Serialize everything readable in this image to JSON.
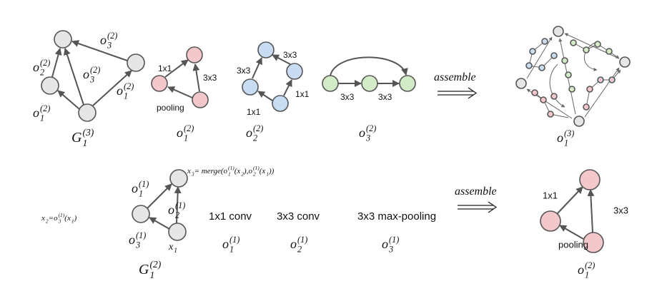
{
  "math": [
    {
      "tokens": [
        {
          "text": "o",
          "sub": "3",
          "sup": "(2)"
        }
      ]
    },
    {
      "tokens": [
        {
          "text": "o",
          "sub": "2",
          "sup": "(2)"
        }
      ]
    },
    {
      "tokens": [
        {
          "text": "o",
          "sub": "3",
          "sup": "(2)"
        }
      ]
    },
    {
      "tokens": [
        {
          "text": "o",
          "sub": "1",
          "sup": "(2)"
        }
      ]
    },
    {
      "tokens": [
        {
          "text": "o",
          "sub": "1",
          "sup": "(2)"
        }
      ]
    },
    {
      "tokens": [
        {
          "text": "G",
          "sub": "1",
          "sup": "(3)"
        }
      ]
    },
    {
      "tokens": [
        {
          "text": "o",
          "sub": "1",
          "sup": "(2)"
        }
      ]
    },
    {
      "tokens": [
        {
          "text": "o",
          "sub": "2",
          "sup": "(2)"
        }
      ]
    },
    {
      "tokens": [
        {
          "text": "o",
          "sub": "3",
          "sup": "(2)"
        }
      ]
    },
    {
      "tokens": [
        {
          "text": "assemble"
        }
      ]
    },
    {
      "tokens": [
        {
          "text": "o",
          "sub": "1",
          "sup": "(3)"
        }
      ]
    },
    {
      "tokens": [
        {
          "text": "x",
          "sub": "3"
        },
        {
          "text": " = merge("
        },
        {
          "text": "o",
          "sub": "1",
          "sup": "(1)"
        },
        {
          "text": "(x",
          "sub": "2"
        },
        {
          "text": "), "
        },
        {
          "text": "o",
          "sub": "2",
          "sup": "(1)"
        },
        {
          "text": "(x",
          "sub": "1"
        },
        {
          "text": "))"
        }
      ]
    },
    {
      "tokens": [
        {
          "text": "o",
          "sub": "1",
          "sup": "(1)"
        }
      ]
    },
    {
      "tokens": [
        {
          "text": "o",
          "sub": "2",
          "sup": "(1)"
        }
      ]
    },
    {
      "tokens": [
        {
          "text": "x",
          "sub": "2"
        },
        {
          "text": " = "
        },
        {
          "text": "o",
          "sub": "3",
          "sup": "(1)"
        },
        {
          "text": "(x",
          "sub": "1"
        },
        {
          "text": ")"
        }
      ]
    },
    {
      "tokens": [
        {
          "text": "o",
          "sub": "3",
          "sup": "(1)"
        }
      ]
    },
    {
      "tokens": [
        {
          "text": "x",
          "sub": "1"
        }
      ]
    },
    {
      "tokens": [
        {
          "text": "G",
          "sub": "1",
          "sup": "(2)"
        }
      ]
    },
    {
      "tokens": [
        {
          "text": "o",
          "sub": "1",
          "sup": "(1)"
        }
      ]
    },
    {
      "tokens": [
        {
          "text": "o",
          "sub": "2",
          "sup": "(1)"
        }
      ]
    },
    {
      "tokens": [
        {
          "text": "o",
          "sub": "3",
          "sup": "(1)"
        }
      ]
    },
    {
      "tokens": [
        {
          "text": "assemble"
        }
      ]
    },
    {
      "tokens": [
        {
          "text": "o",
          "sub": "1",
          "sup": "(2)"
        }
      ]
    }
  ],
  "plain": [
    "1x1",
    "3x3",
    "pooling",
    "3x3",
    "3x3",
    "1x1",
    "1x1",
    "3x3",
    "3x3",
    "1x1 conv",
    "3x3 conv",
    "3x3 max-pooling",
    "1x1",
    "3x3",
    "pooling"
  ]
}
